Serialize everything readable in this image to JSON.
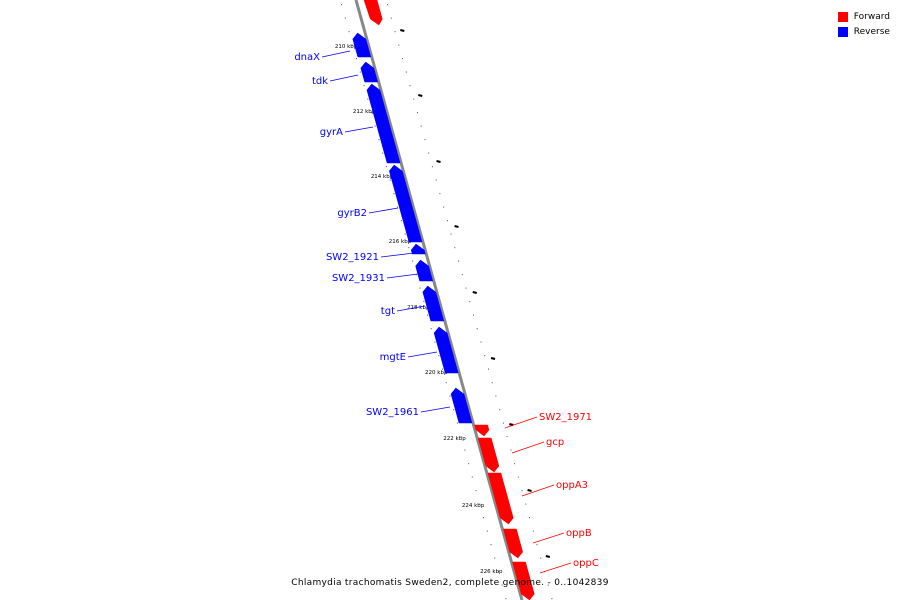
{
  "legend": {
    "forward_label": "Forward",
    "reverse_label": "Reverse",
    "forward_color": "#ff0000",
    "reverse_color": "#0000ff"
  },
  "caption": "Chlamydia trachomatis Sweden2, complete genome. - 0..1042839",
  "track_color": "#888888",
  "tick_labels": [
    "210 kbp",
    "212 kbp",
    "214 kbp",
    "216 kbp",
    "218 kbp",
    "220 kbp",
    "222 kbp",
    "224 kbp",
    "226 kbp"
  ],
  "genes": [
    {
      "label": "dnaX",
      "strand": "reverse"
    },
    {
      "label": "tdk",
      "strand": "reverse"
    },
    {
      "label": "gyrA",
      "strand": "reverse"
    },
    {
      "label": "gyrB2",
      "strand": "reverse"
    },
    {
      "label": "SW2_1921",
      "strand": "reverse"
    },
    {
      "label": "SW2_1931",
      "strand": "reverse"
    },
    {
      "label": "tgt",
      "strand": "reverse"
    },
    {
      "label": "mgtE",
      "strand": "reverse"
    },
    {
      "label": "SW2_1961",
      "strand": "reverse"
    },
    {
      "label": "SW2_1971",
      "strand": "forward"
    },
    {
      "label": "gcp",
      "strand": "forward"
    },
    {
      "label": "oppA3",
      "strand": "forward"
    },
    {
      "label": "oppB",
      "strand": "forward"
    },
    {
      "label": "oppC",
      "strand": "forward"
    }
  ]
}
